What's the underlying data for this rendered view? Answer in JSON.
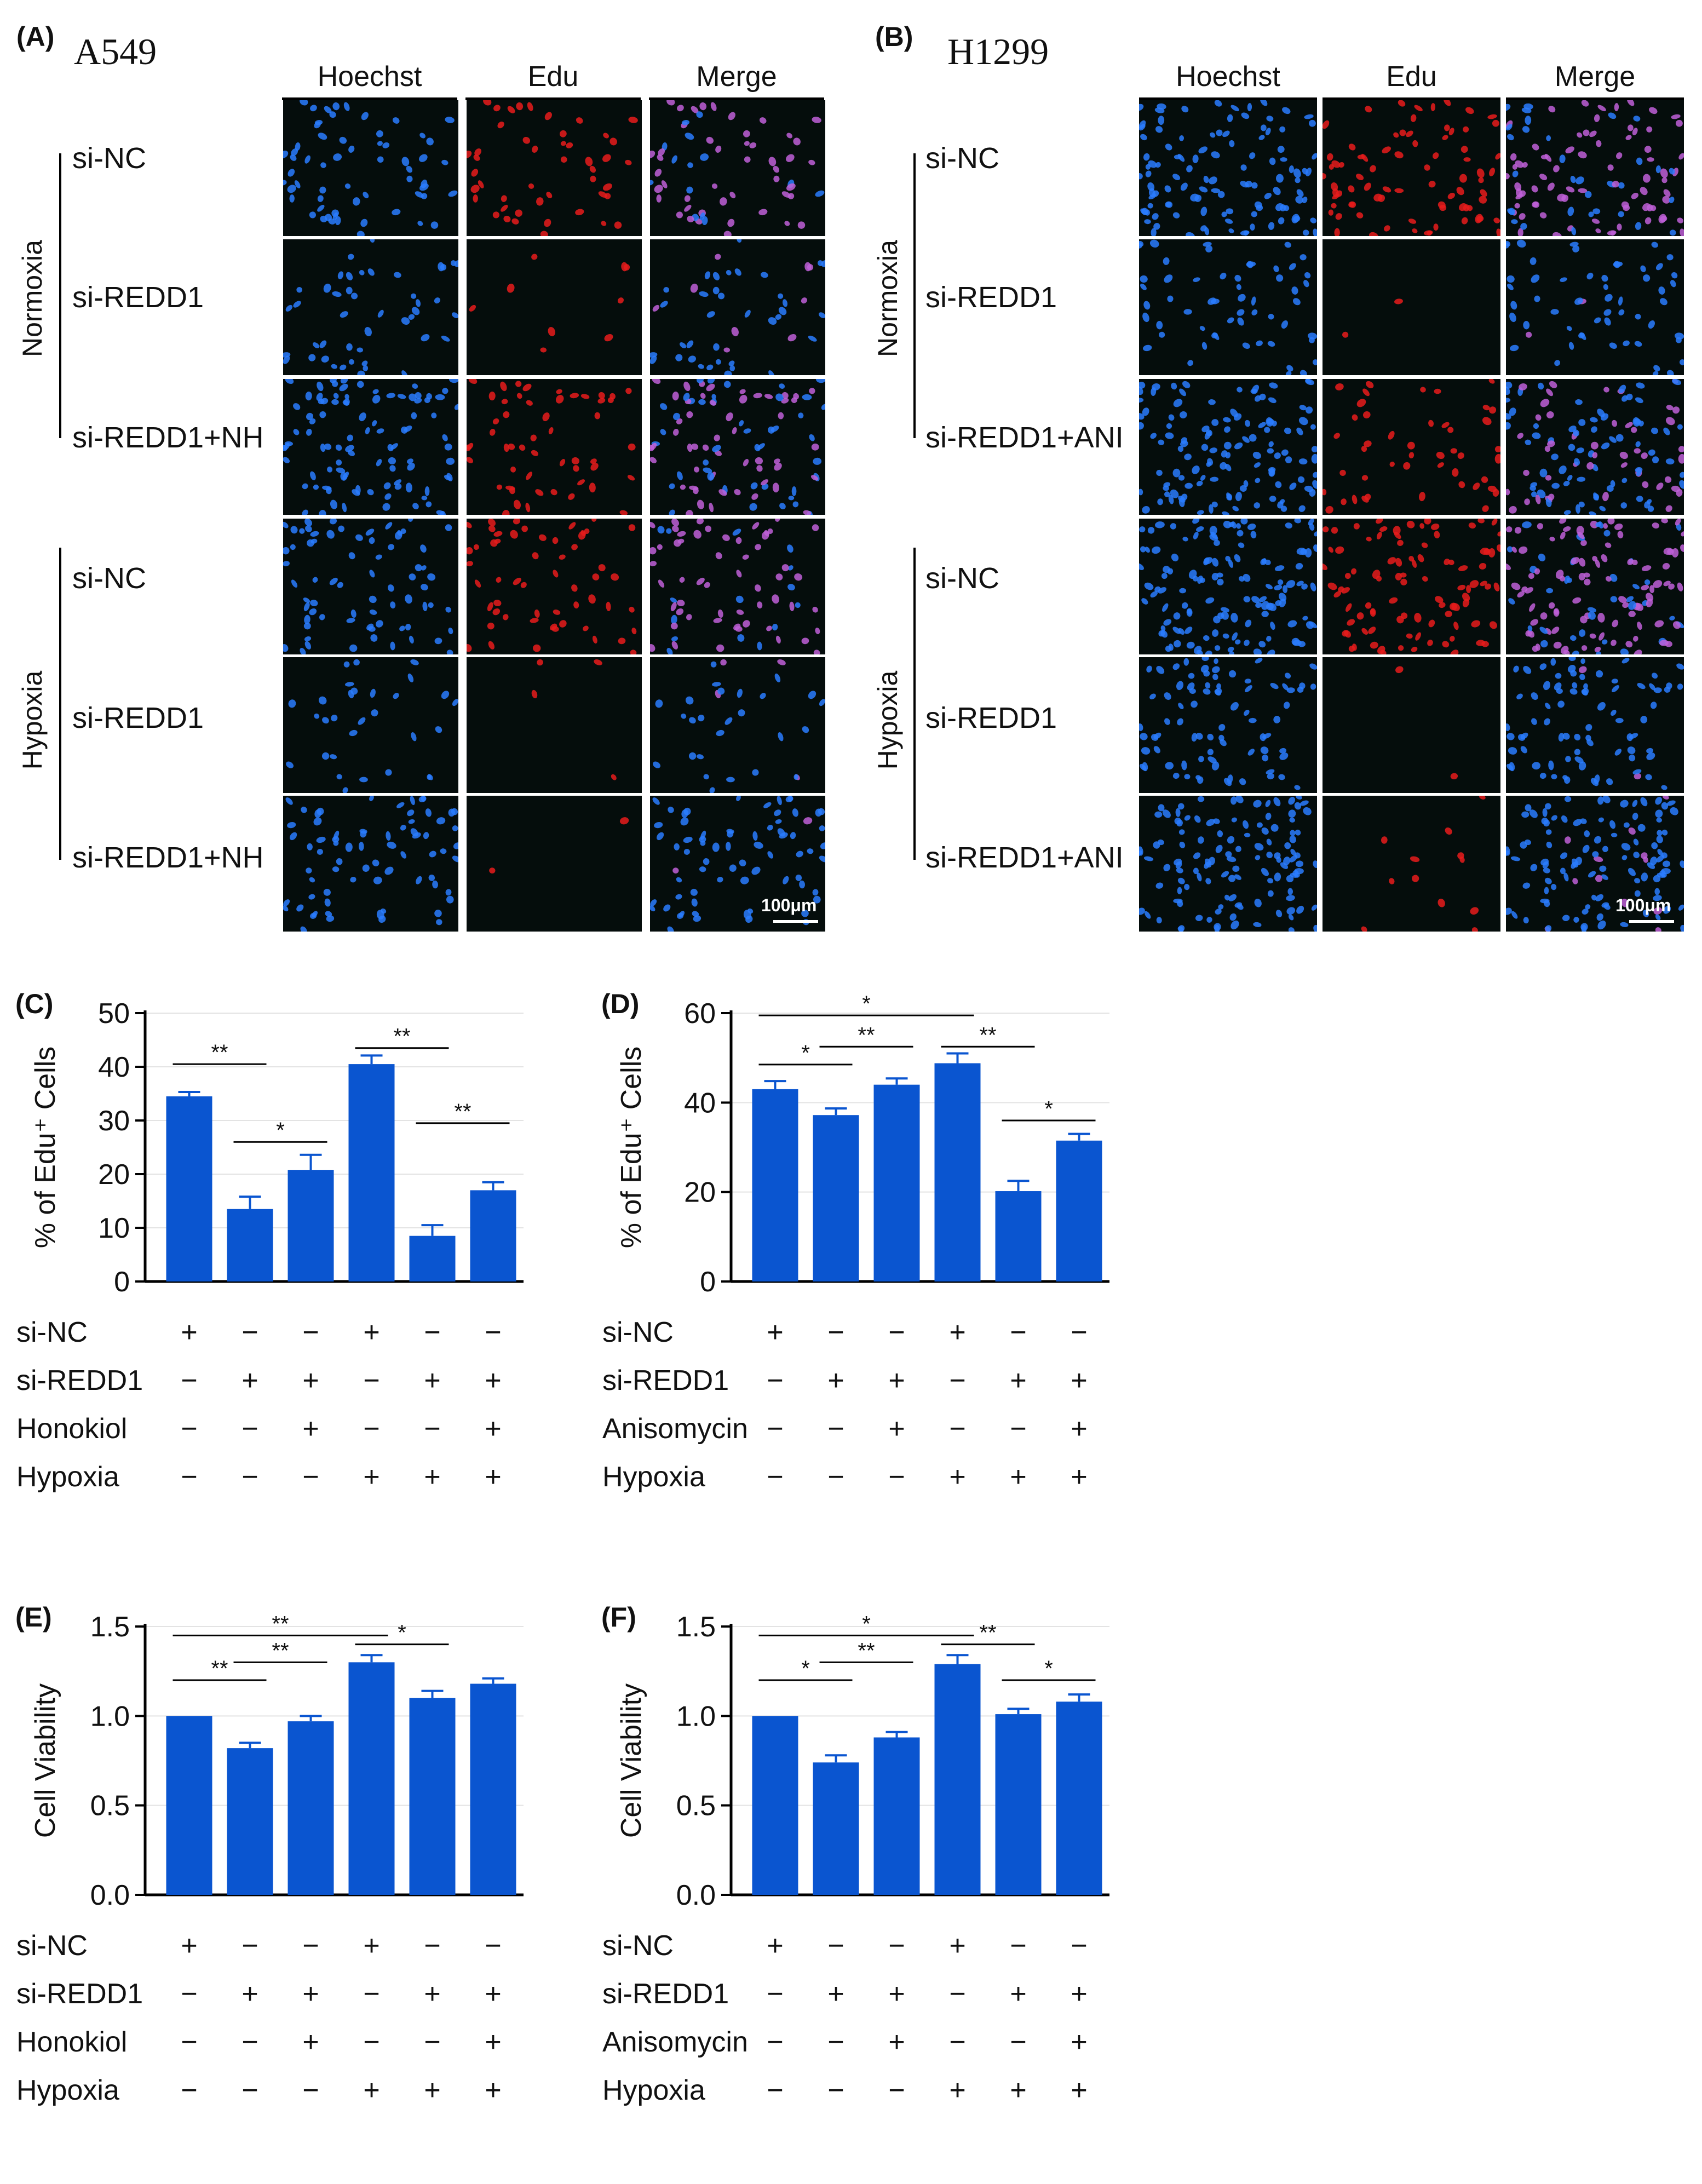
{
  "panels": {
    "A": {
      "label": "(A)",
      "title": "A549",
      "columns": [
        "Hoechst",
        "Edu",
        "Merge"
      ],
      "groups": [
        "Normoxia",
        "Hypoxia"
      ],
      "rows": [
        "si-NC",
        "si-REDD1",
        "si-REDD1+NH",
        "si-NC",
        "si-REDD1",
        "si-REDD1+NH"
      ],
      "scalebar": "100μm"
    },
    "B": {
      "label": "(B)",
      "title": "H1299",
      "columns": [
        "Hoechst",
        "Edu",
        "Merge"
      ],
      "groups": [
        "Normoxia",
        "Hypoxia"
      ],
      "rows": [
        "si-NC",
        "si-REDD1",
        "si-REDD1+ANI",
        "si-NC",
        "si-REDD1",
        "si-REDD1+ANI"
      ],
      "scalebar": "100μm"
    }
  },
  "colors": {
    "bar": "#0a55d0",
    "blue_nuclei": "#2a7cff",
    "red_nuclei": "#e81c1c",
    "merge": "#c060d8"
  },
  "chart_data": [
    {
      "panel": "(C)",
      "type": "bar",
      "ylabel": "% of Edu⁺ Cells",
      "ylim": [
        0,
        50
      ],
      "yticks": [
        "0",
        "10",
        "20",
        "30",
        "40",
        "50"
      ],
      "yticks_values": [
        0,
        10,
        20,
        30,
        40,
        50
      ],
      "values": [
        34.5,
        13.5,
        20.8,
        40.5,
        8.5,
        17
      ],
      "errors": [
        0.8,
        2.3,
        2.8,
        1.6,
        2,
        1.5
      ],
      "treatments": [
        {
          "name": "si-NC",
          "signs": [
            "+",
            "−",
            "−",
            "+",
            "−",
            "−"
          ]
        },
        {
          "name": "si-REDD1",
          "signs": [
            "−",
            "+",
            "+",
            "−",
            "+",
            "+"
          ]
        },
        {
          "name": "Honokiol",
          "signs": [
            "−",
            "−",
            "+",
            "−",
            "−",
            "+"
          ]
        },
        {
          "name": "Hypoxia",
          "signs": [
            "−",
            "−",
            "−",
            "+",
            "+",
            "+"
          ]
        }
      ],
      "significance": [
        {
          "from": 0,
          "to": 1,
          "label": "**",
          "y": 40.5
        },
        {
          "from": 1,
          "to": 2,
          "label": "*",
          "y": 26
        },
        {
          "from": 3,
          "to": 4,
          "label": "**",
          "y": 43.5
        },
        {
          "from": 4,
          "to": 5,
          "label": "**",
          "y": 29.5
        }
      ]
    },
    {
      "panel": "(D)",
      "type": "bar",
      "ylabel": "% of Edu⁺ Cells",
      "ylim": [
        0,
        60
      ],
      "yticks": [
        "0",
        "20",
        "40",
        "60"
      ],
      "yticks_values": [
        0,
        20,
        40,
        60
      ],
      "values": [
        43,
        37.2,
        44,
        48.8,
        20.2,
        31.5
      ],
      "errors": [
        1.8,
        1.5,
        1.4,
        2.2,
        2.3,
        1.5
      ],
      "treatments": [
        {
          "name": "si-NC",
          "signs": [
            "+",
            "−",
            "−",
            "+",
            "−",
            "−"
          ]
        },
        {
          "name": "si-REDD1",
          "signs": [
            "−",
            "+",
            "+",
            "−",
            "+",
            "+"
          ]
        },
        {
          "name": "Anisomycin",
          "signs": [
            "−",
            "−",
            "+",
            "−",
            "−",
            "+"
          ]
        },
        {
          "name": "Hypoxia",
          "signs": [
            "−",
            "−",
            "−",
            "+",
            "+",
            "+"
          ]
        }
      ],
      "significance": [
        {
          "from": 0,
          "to": 3,
          "label": "*",
          "y": 59.5
        },
        {
          "from": 1,
          "to": 2,
          "label": "**",
          "y": 52.5
        },
        {
          "from": 0,
          "to": 1,
          "label": "*",
          "y": 48.5
        },
        {
          "from": 3,
          "to": 4,
          "label": "**",
          "y": 52.5
        },
        {
          "from": 4,
          "to": 5,
          "label": "*",
          "y": 36
        }
      ]
    },
    {
      "panel": "(E)",
      "type": "bar",
      "ylabel": "Cell Viability",
      "ylim": [
        0,
        1.5
      ],
      "yticks": [
        "0.0",
        "0.5",
        "1.0",
        "1.5"
      ],
      "yticks_values": [
        0,
        0.5,
        1,
        1.5
      ],
      "values": [
        1.0,
        0.82,
        0.97,
        1.3,
        1.1,
        1.18
      ],
      "errors": [
        0,
        0.03,
        0.03,
        0.04,
        0.04,
        0.03
      ],
      "treatments": [
        {
          "name": "si-NC",
          "signs": [
            "+",
            "−",
            "−",
            "+",
            "−",
            "−"
          ]
        },
        {
          "name": "si-REDD1",
          "signs": [
            "−",
            "+",
            "+",
            "−",
            "+",
            "+"
          ]
        },
        {
          "name": "Honokiol",
          "signs": [
            "−",
            "−",
            "+",
            "−",
            "−",
            "+"
          ]
        },
        {
          "name": "Hypoxia",
          "signs": [
            "−",
            "−",
            "−",
            "+",
            "+",
            "+"
          ]
        }
      ],
      "significance": [
        {
          "from": 0,
          "to": 3,
          "label": "**",
          "y": 1.45
        },
        {
          "from": 1,
          "to": 2,
          "label": "**",
          "y": 1.3
        },
        {
          "from": 0,
          "to": 1,
          "label": "**",
          "y": 1.2
        },
        {
          "from": 3,
          "to": 4,
          "label": "*",
          "y": 1.4
        }
      ]
    },
    {
      "panel": "(F)",
      "type": "bar",
      "ylabel": "Cell Viability",
      "ylim": [
        0,
        1.5
      ],
      "yticks": [
        "0.0",
        "0.5",
        "1.0",
        "1.5"
      ],
      "yticks_values": [
        0,
        0.5,
        1,
        1.5
      ],
      "values": [
        1.0,
        0.74,
        0.88,
        1.29,
        1.01,
        1.08
      ],
      "errors": [
        0,
        0.04,
        0.03,
        0.05,
        0.03,
        0.04
      ],
      "treatments": [
        {
          "name": "si-NC",
          "signs": [
            "+",
            "−",
            "−",
            "+",
            "−",
            "−"
          ]
        },
        {
          "name": "si-REDD1",
          "signs": [
            "−",
            "+",
            "+",
            "−",
            "+",
            "+"
          ]
        },
        {
          "name": "Anisomycin",
          "signs": [
            "−",
            "−",
            "+",
            "−",
            "−",
            "+"
          ]
        },
        {
          "name": "Hypoxia",
          "signs": [
            "−",
            "−",
            "−",
            "+",
            "+",
            "+"
          ]
        }
      ],
      "significance": [
        {
          "from": 0,
          "to": 3,
          "label": "*",
          "y": 1.45
        },
        {
          "from": 1,
          "to": 2,
          "label": "**",
          "y": 1.3
        },
        {
          "from": 0,
          "to": 1,
          "label": "*",
          "y": 1.2
        },
        {
          "from": 3,
          "to": 4,
          "label": "**",
          "y": 1.4
        },
        {
          "from": 4,
          "to": 5,
          "label": "*",
          "y": 1.2
        }
      ]
    }
  ]
}
